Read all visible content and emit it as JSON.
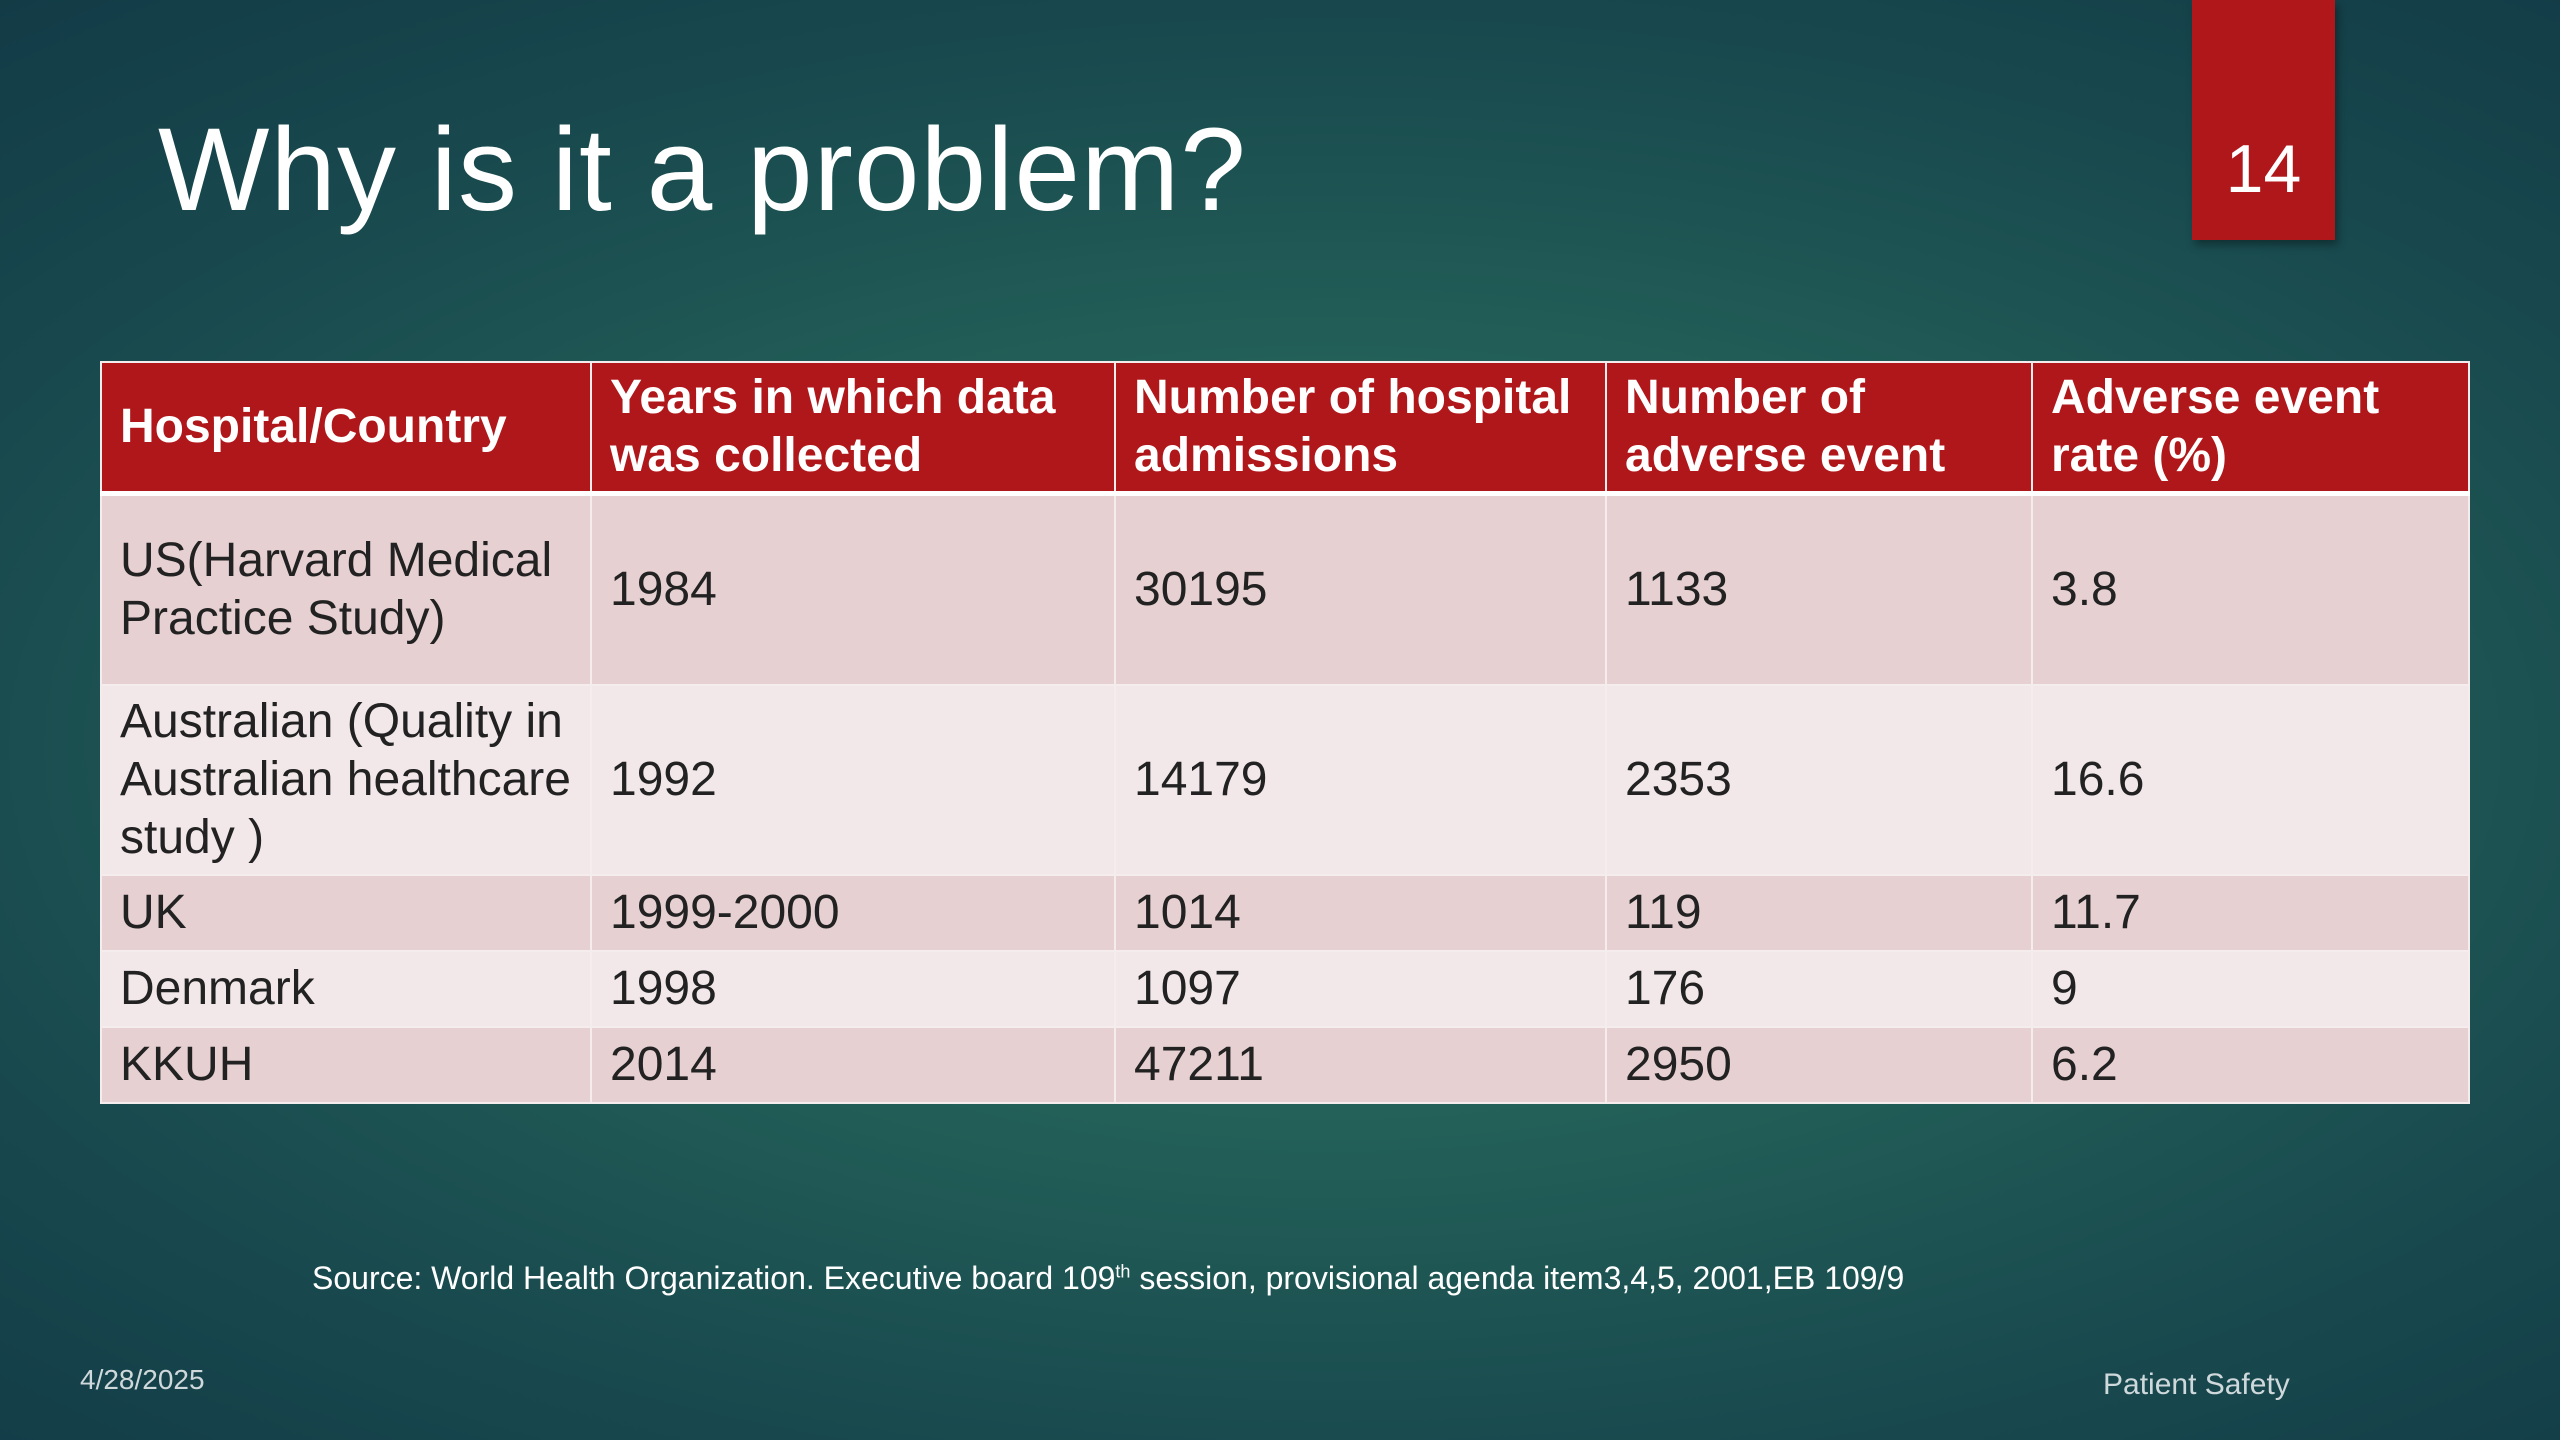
{
  "slide": {
    "title": "Why is it a problem?",
    "page_number": "14",
    "colors": {
      "accent": "#b0171b",
      "background": "#1f5a55"
    }
  },
  "table": {
    "headers": [
      "Hospital/Country",
      "Years in which data was collected",
      "Number of hospital admissions",
      "Number of adverse event",
      "Adverse event rate (%)"
    ],
    "rows": [
      [
        "US(Harvard Medical Practice Study)",
        "1984",
        "30195",
        "1133",
        "3.8"
      ],
      [
        "Australian (Quality in Australian healthcare study )",
        "1992",
        "14179",
        "2353",
        "16.6"
      ],
      [
        "UK",
        "1999-2000",
        "1014",
        "119",
        "11.7"
      ],
      [
        "Denmark",
        "1998",
        "1097",
        "176",
        "9"
      ],
      [
        "KKUH",
        "2014",
        "47211",
        "2950",
        "6.2"
      ]
    ]
  },
  "source": {
    "prefix": "Source: World Health Organization. Executive board 109",
    "superscript": "th",
    "suffix": " session, provisional agenda item3,4,5, 2001,EB 109/9"
  },
  "footer": {
    "date": "4/28/2025",
    "text": "Patient Safety"
  }
}
